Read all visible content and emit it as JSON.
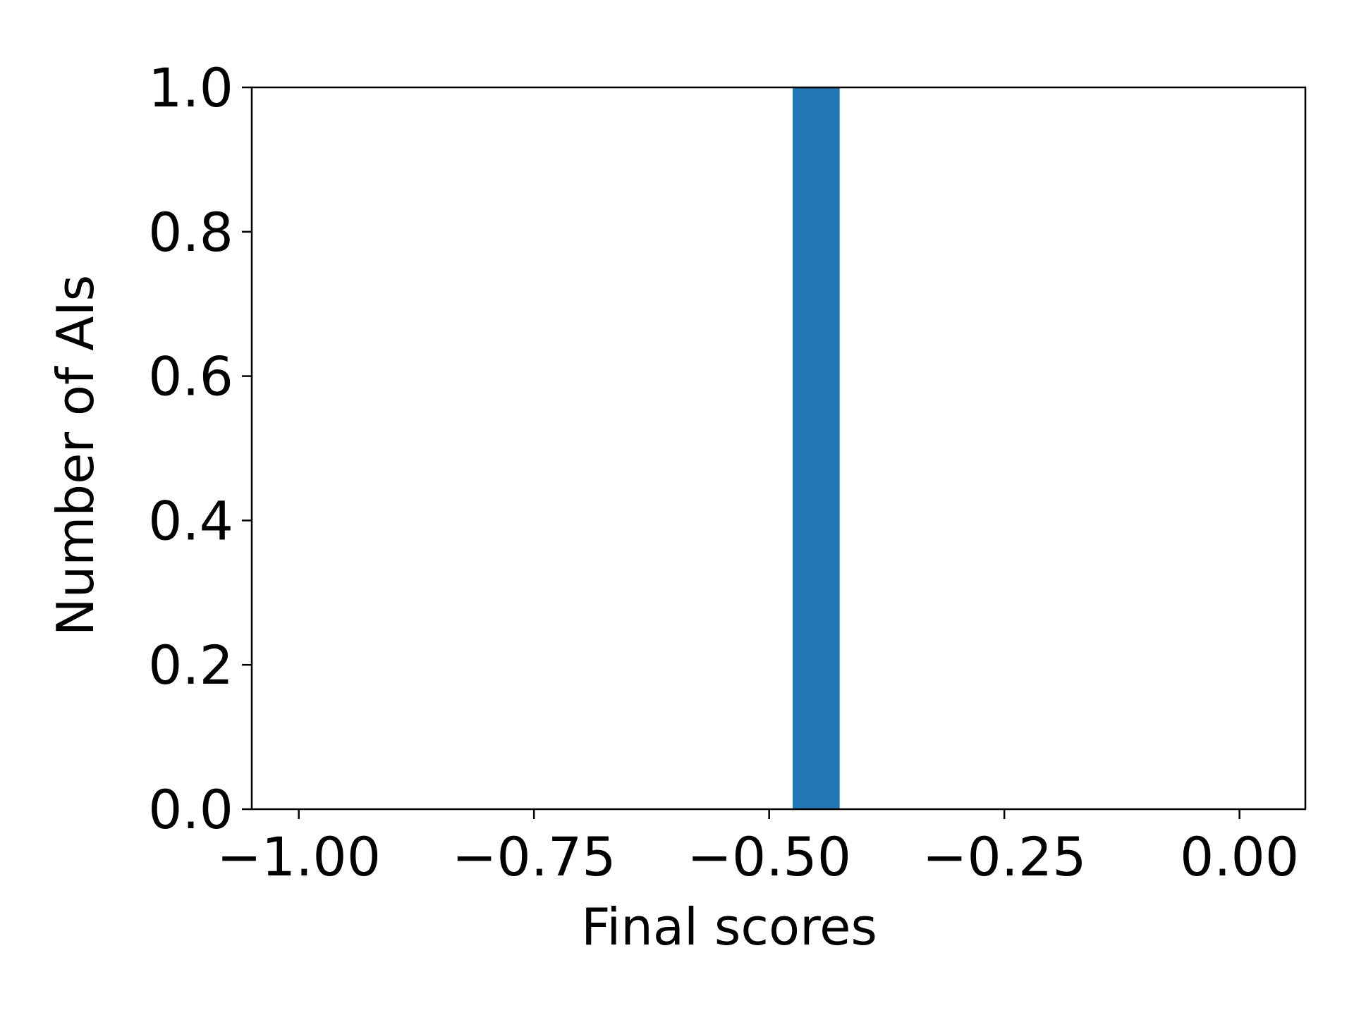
{
  "chart_data": {
    "type": "bar",
    "title": "",
    "xlabel": "Final scores",
    "ylabel": "Number of AIs",
    "xlim": [
      -1.05,
      0.07
    ],
    "ylim": [
      0.0,
      1.0
    ],
    "xticks": [
      {
        "value": -1.0,
        "label": "−1.00"
      },
      {
        "value": -0.75,
        "label": "−0.75"
      },
      {
        "value": -0.5,
        "label": "−0.50"
      },
      {
        "value": -0.25,
        "label": "−0.25"
      },
      {
        "value": 0.0,
        "label": "0.00"
      }
    ],
    "yticks": [
      {
        "value": 0.0,
        "label": "0.0"
      },
      {
        "value": 0.2,
        "label": "0.2"
      },
      {
        "value": 0.4,
        "label": "0.4"
      },
      {
        "value": 0.6,
        "label": "0.6"
      },
      {
        "value": 0.8,
        "label": "0.8"
      },
      {
        "value": 1.0,
        "label": "1.0"
      }
    ],
    "bars": [
      {
        "x_start": -0.475,
        "x_end": -0.425,
        "value": 1.0
      }
    ],
    "bar_color": "#2077b4",
    "grid": false,
    "legend": "none"
  }
}
